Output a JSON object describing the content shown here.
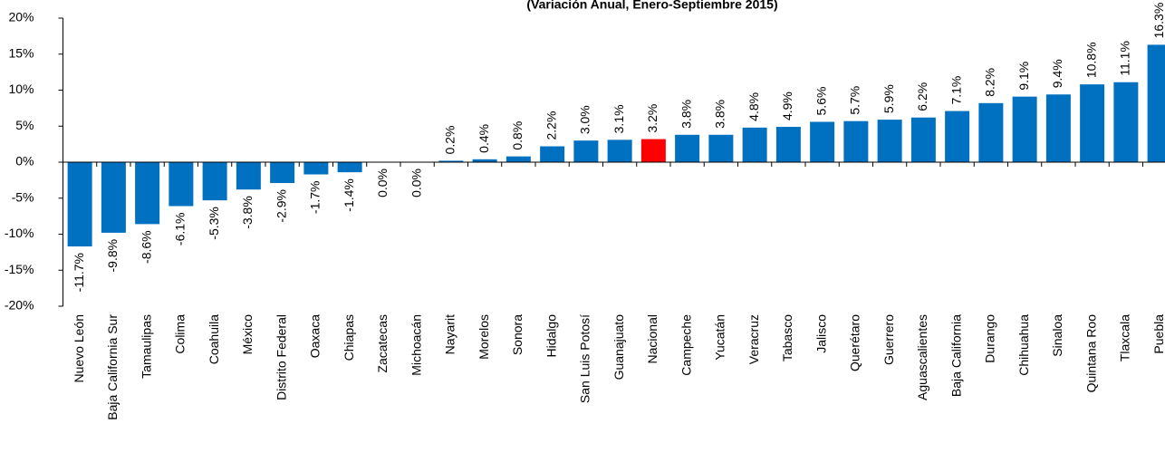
{
  "chart_data": {
    "type": "bar",
    "title": "(Variación Anual, Enero-Septiembre 2015)",
    "categories": [
      "Nuevo León",
      "Baja California Sur",
      "Tamaulipas",
      "Colima",
      "Coahuila",
      "México",
      "Distrito Federal",
      "Oaxaca",
      "Chiapas",
      "Zacatecas",
      "Michoacán",
      "Nayarit",
      "Morelos",
      "Sonora",
      "Hidalgo",
      "San Luis Potosí",
      "Guanajuato",
      "Nacional",
      "Campeche",
      "Yucatán",
      "Veracruz",
      "Tabasco",
      "Jalisco",
      "Querétaro",
      "Guerrero",
      "Aguascalientes",
      "Baja California",
      "Durango",
      "Chihuahua",
      "Sinaloa",
      "Quintana Roo",
      "Tlaxcala",
      "Puebla"
    ],
    "values": [
      -11.7,
      -9.8,
      -8.6,
      -6.1,
      -5.3,
      -3.8,
      -2.9,
      -1.7,
      -1.4,
      0.0,
      0.0,
      0.2,
      0.4,
      0.8,
      2.2,
      3.0,
      3.1,
      3.2,
      3.8,
      3.8,
      4.8,
      4.9,
      5.6,
      5.7,
      5.9,
      6.2,
      7.1,
      8.2,
      9.1,
      9.4,
      10.8,
      11.1,
      16.3
    ],
    "value_labels": [
      "-11.7%",
      "-9.8%",
      "-8.6%",
      "-6.1%",
      "-5.3%",
      "-3.8%",
      "-2.9%",
      "-1.7%",
      "-1.4%",
      "0.0%",
      "0.0%",
      "0.2%",
      "0.4%",
      "0.8%",
      "2.2%",
      "3.0%",
      "3.1%",
      "3.2%",
      "3.8%",
      "3.8%",
      "4.8%",
      "4.9%",
      "5.6%",
      "5.7%",
      "5.9%",
      "6.2%",
      "7.1%",
      "8.2%",
      "9.1%",
      "9.4%",
      "10.8%",
      "11.1%",
      "16.3%"
    ],
    "colors": [
      "#0070c0",
      "#0070c0",
      "#0070c0",
      "#0070c0",
      "#0070c0",
      "#0070c0",
      "#0070c0",
      "#0070c0",
      "#0070c0",
      "#0070c0",
      "#0070c0",
      "#0070c0",
      "#0070c0",
      "#0070c0",
      "#0070c0",
      "#0070c0",
      "#0070c0",
      "#ff0000",
      "#0070c0",
      "#0070c0",
      "#0070c0",
      "#0070c0",
      "#0070c0",
      "#0070c0",
      "#0070c0",
      "#0070c0",
      "#0070c0",
      "#0070c0",
      "#0070c0",
      "#0070c0",
      "#0070c0",
      "#0070c0",
      "#0070c0"
    ],
    "ylim": [
      -20,
      20
    ],
    "yticks": [
      {
        "value": -20,
        "label": "-20%"
      },
      {
        "value": -15,
        "label": "-15%"
      },
      {
        "value": -10,
        "label": "-10%"
      },
      {
        "value": -5,
        "label": "-5%"
      },
      {
        "value": 0,
        "label": "0%"
      },
      {
        "value": 5,
        "label": "5%"
      },
      {
        "value": 10,
        "label": "10%"
      },
      {
        "value": 15,
        "label": "15%"
      },
      {
        "value": 20,
        "label": "20%"
      }
    ],
    "grid": false
  }
}
